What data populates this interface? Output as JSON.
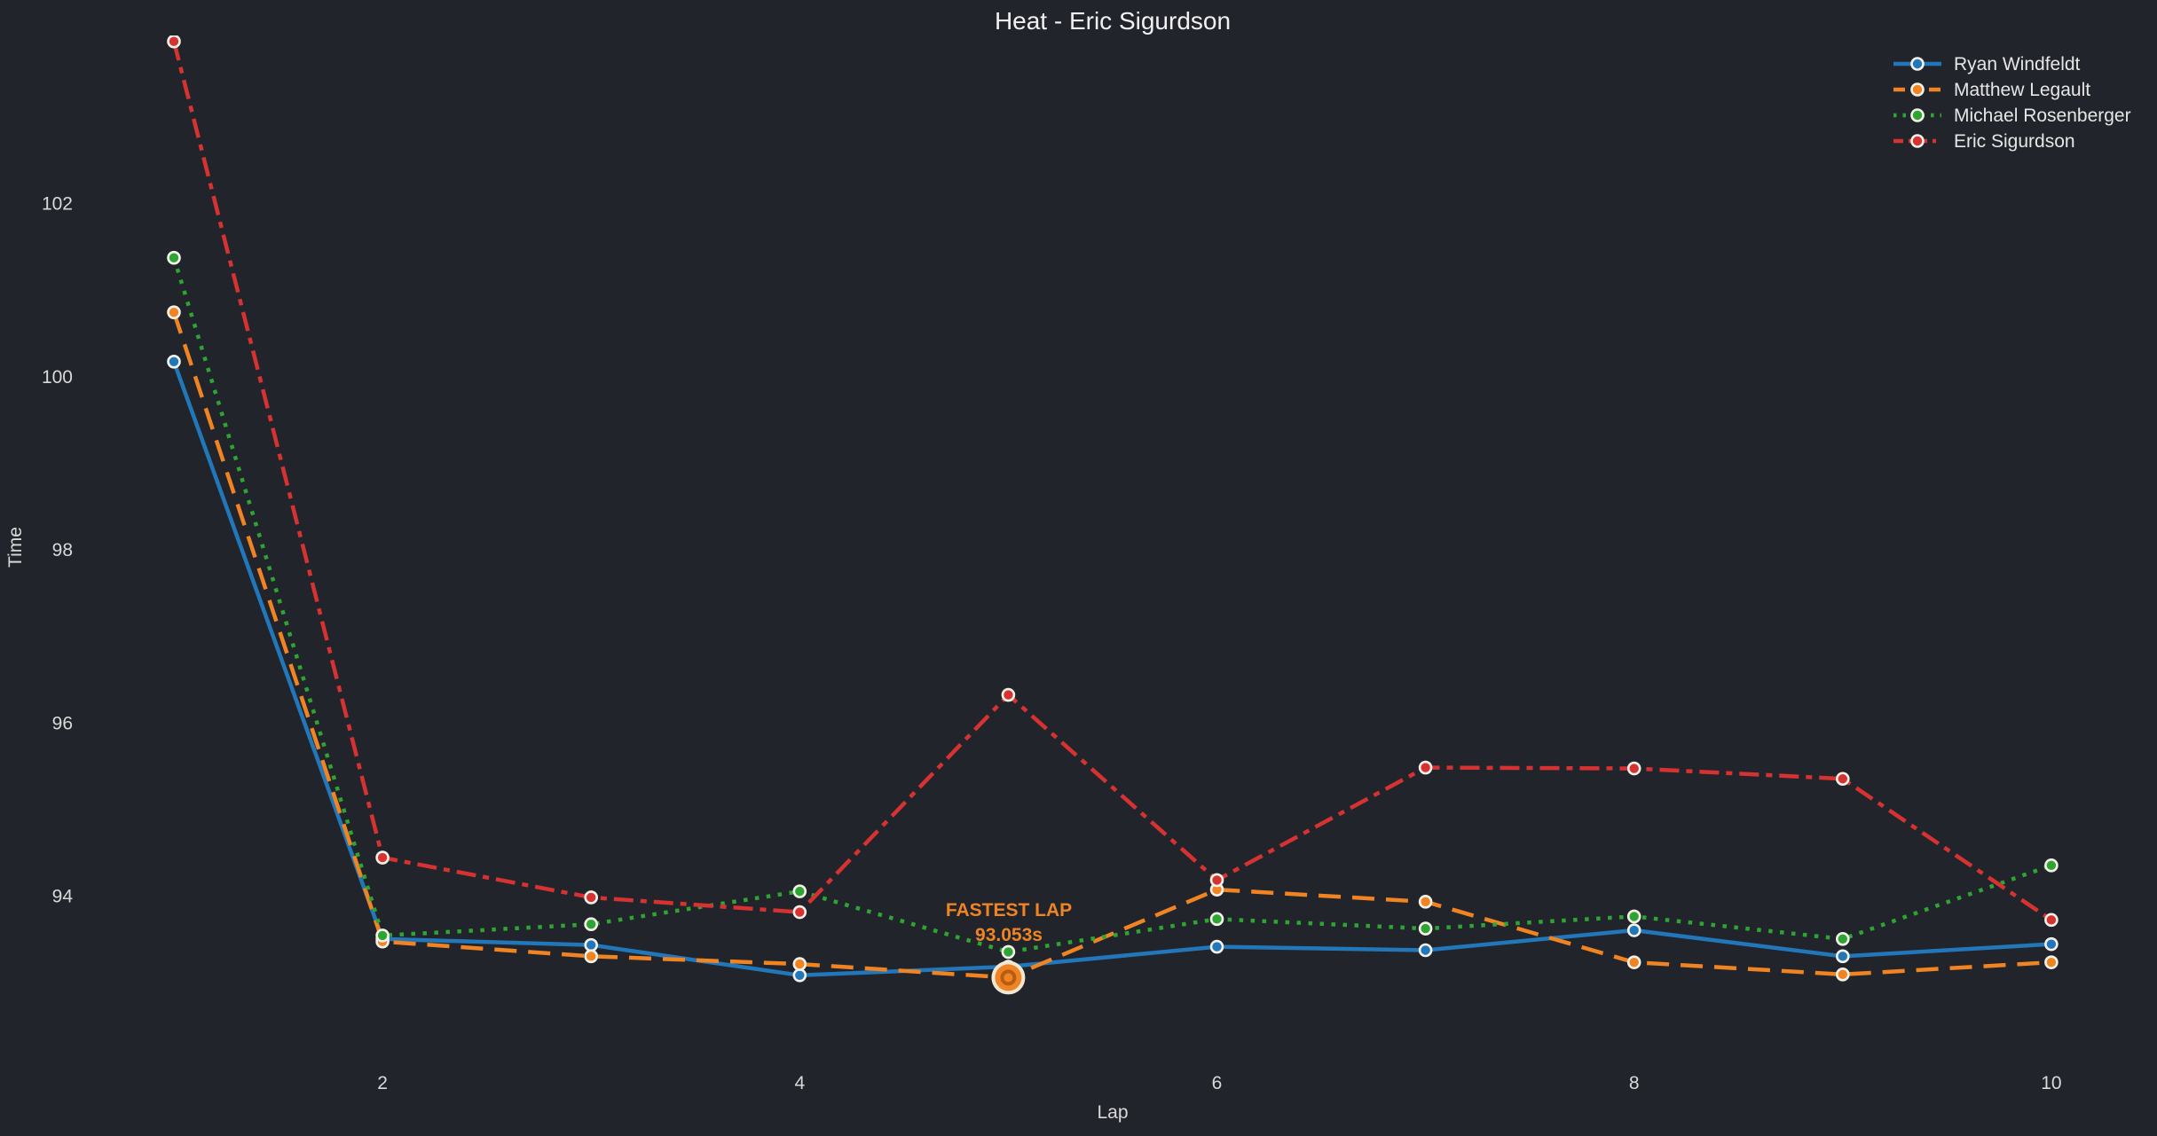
{
  "chart_data": {
    "type": "line",
    "title": "Heat - Eric Sigurdson",
    "xlabel": "Lap",
    "ylabel": "Time",
    "x": [
      1,
      2,
      3,
      4,
      5,
      6,
      7,
      8,
      9,
      10
    ],
    "xticks": [
      2,
      4,
      6,
      8,
      10
    ],
    "yticks": [
      94,
      96,
      98,
      100,
      102
    ],
    "xlim": [
      0.6,
      10.45
    ],
    "ylim": [
      92.6,
      104.0
    ],
    "grid": false,
    "legend_position": "upper right",
    "series": [
      {
        "name": "Ryan Windfeldt",
        "color": "#2277ba",
        "line_style": "solid",
        "values": [
          100.17,
          93.5,
          93.43,
          93.08,
          93.18,
          93.41,
          93.37,
          93.6,
          93.3,
          93.44
        ]
      },
      {
        "name": "Matthew Legault",
        "color": "#f08423",
        "line_style": "dashed",
        "values": [
          100.74,
          93.47,
          93.3,
          93.21,
          93.053,
          94.07,
          93.93,
          93.23,
          93.09,
          93.23
        ]
      },
      {
        "name": "Michael Rosenberger",
        "color": "#2ea533",
        "line_style": "dotted",
        "values": [
          101.37,
          93.54,
          93.67,
          94.05,
          93.35,
          93.73,
          93.62,
          93.76,
          93.5,
          94.35
        ]
      },
      {
        "name": "Eric Sigurdson",
        "color": "#d73232",
        "line_style": "dashdot",
        "values": [
          103.87,
          94.44,
          93.98,
          93.81,
          96.32,
          94.18,
          95.48,
          95.47,
          95.35,
          93.72
        ]
      }
    ]
  },
  "annotation": {
    "line1": "FASTEST LAP",
    "line2": "93.053s",
    "lap": 5,
    "value": 93.053,
    "color": "#f08423"
  },
  "colors": {
    "background": "#21252b",
    "title_text": "#f0f0f0",
    "text": "#e6e6e6",
    "tick_text": "#d9d9d9",
    "marker_edge": "#f4f1e9",
    "highlight_ring": "#f2e7d3",
    "highlight_inner": "#b55c15"
  }
}
